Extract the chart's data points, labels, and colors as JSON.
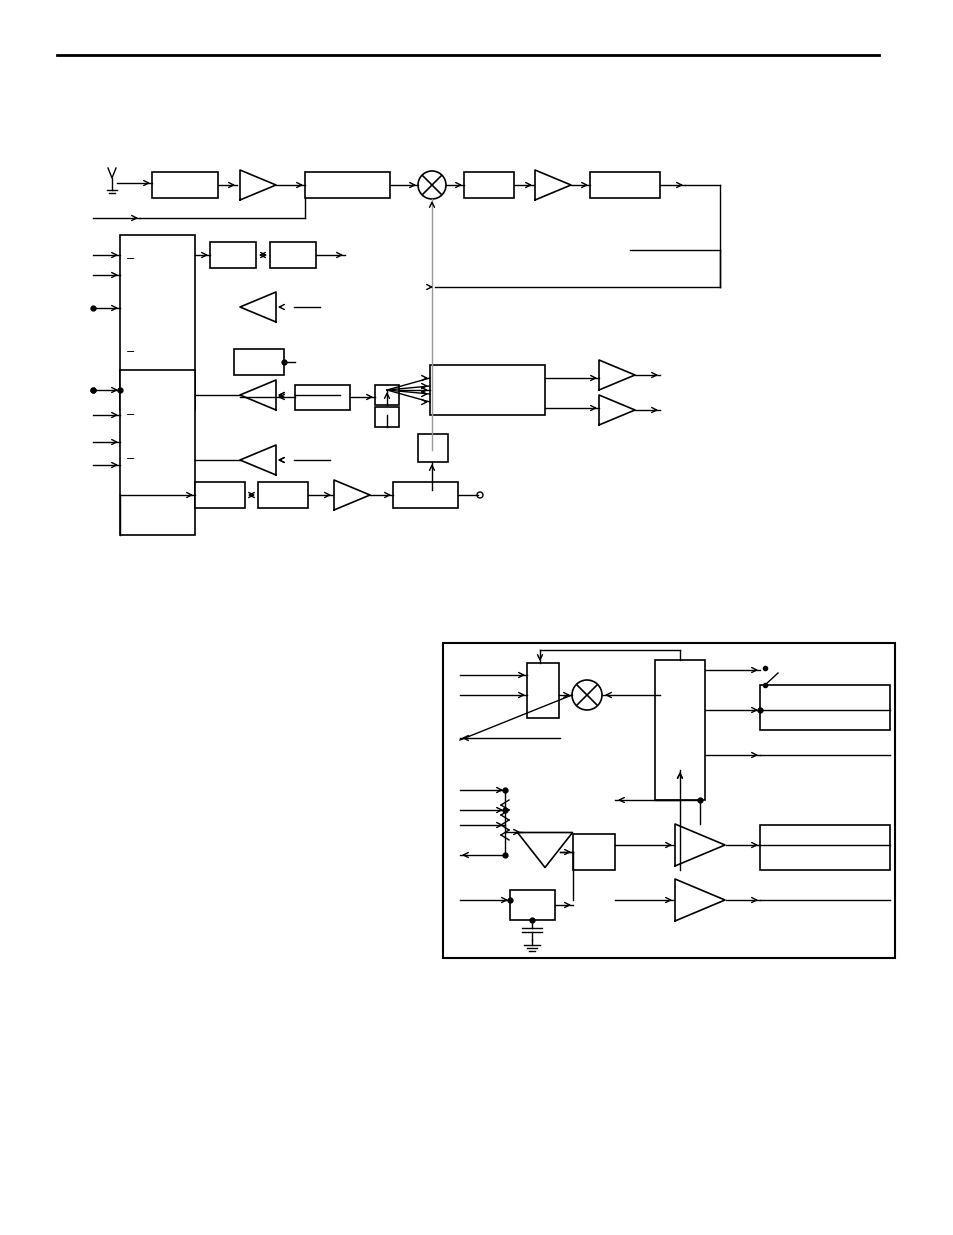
{
  "bg_color": "#ffffff",
  "line_color": "#000000",
  "fig_width": 9.54,
  "fig_height": 12.35
}
